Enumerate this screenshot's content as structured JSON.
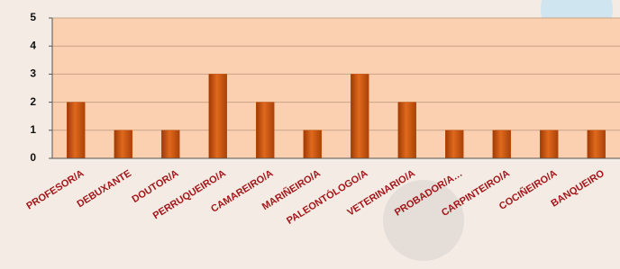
{
  "chart_data": {
    "type": "bar",
    "categories": [
      "PROFESOR/A",
      "DEBUXANTE",
      "DOUTOR/A",
      "PERRUQUEIRO/A",
      "CAMAREIRO/A",
      "MARIÑEIRO/A",
      "PALEONTÓLOGO/A",
      "VETERINARIO/A",
      "PROBADOR/A…",
      "CARPINTEIRO/A",
      "COCIÑEIRO/A",
      "BANQUEIRO"
    ],
    "values": [
      2,
      1,
      1,
      3,
      2,
      1,
      3,
      2,
      1,
      1,
      1,
      1
    ],
    "color": "#c0500e",
    "ylim": [
      0,
      5
    ],
    "yticks": [
      0,
      1,
      2,
      3,
      4,
      5
    ],
    "grid": true
  }
}
